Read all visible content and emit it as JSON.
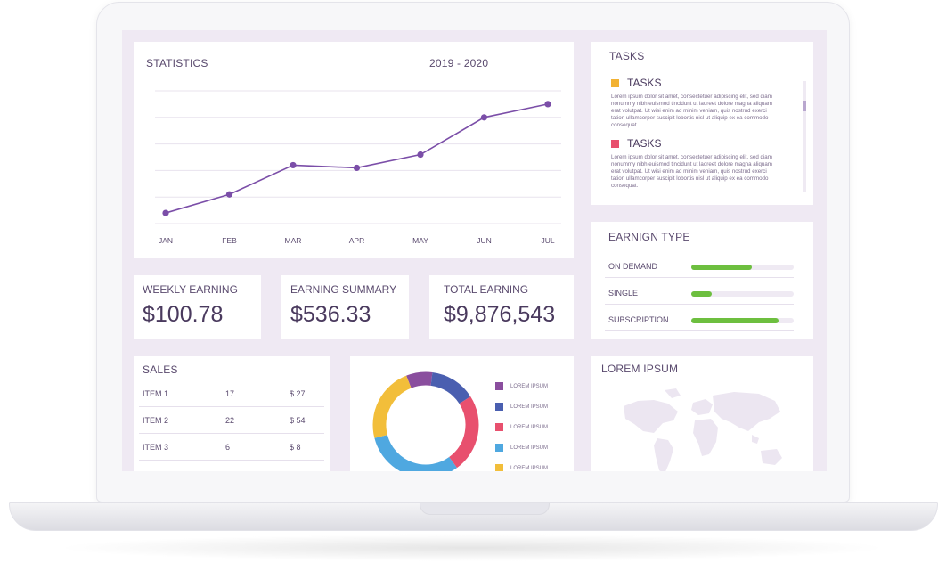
{
  "statistics": {
    "title": "STATISTICS",
    "period": "2019 - 2020",
    "chart_data": {
      "type": "line",
      "title": "STATISTICS",
      "subtitle": "2019 - 2020",
      "categories": [
        "JAN",
        "FEB",
        "MAR",
        "APR",
        "MAY",
        "JUN",
        "JUL"
      ],
      "values": [
        4,
        11,
        22,
        21,
        26,
        40,
        45
      ],
      "ylim": [
        0,
        50
      ],
      "grid": true,
      "line_color": "#7b4ea8"
    }
  },
  "tasks": {
    "title": "TASKS",
    "items": [
      {
        "label": "TASKS",
        "color": "#f2b233",
        "body": "Lorem ipsum dolor sit amet, consectetuer adipiscing elit, sed diam nonummy nibh euismod tincidunt ut laoreet dolore magna aliquam erat volutpat. Ut wisi enim ad minim veniam, quis nostrud exerci tation ullamcorper suscipit lobortis nisl ut aliquip ex ea commodo consequat."
      },
      {
        "label": "TASKS",
        "color": "#e8506e",
        "body": "Lorem ipsum dolor sit amet, consectetuer adipiscing elit, sed diam nonummy nibh euismod tincidunt ut laoreet dolore magna aliquam erat volutpat. Ut wisi enim ad minim veniam, quis nostrud exerci tation ullamcorper suscipit lobortis nisl ut aliquip ex ea commodo consequat."
      }
    ]
  },
  "earnings": [
    {
      "label": "WEEKLY EARNING",
      "value": "$100.78"
    },
    {
      "label": "EARNING SUMMARY",
      "value": "$536.33"
    },
    {
      "label": "TOTAL EARNING",
      "value": "$9,876,543"
    }
  ],
  "earning_type": {
    "title": "EARNIGN TYPE",
    "accent": "#6dbf3f",
    "items": [
      {
        "label": "ON DEMAND",
        "level": 0.59
      },
      {
        "label": "SINGLE",
        "level": 0.2
      },
      {
        "label": "SUBSCRIPTION",
        "level": 0.85
      }
    ]
  },
  "sales": {
    "title": "SALES",
    "rows": [
      {
        "item": "ITEM 1",
        "qty": "17",
        "price": "$ 27"
      },
      {
        "item": "ITEM 2",
        "qty": "22",
        "price": "$ 54"
      },
      {
        "item": "ITEM 3",
        "qty": "6",
        "price": "$ 8"
      }
    ]
  },
  "donut": {
    "chart_data": {
      "type": "pie",
      "donut": true,
      "categories": [
        "LOREM IPSUM",
        "LOREM IPSUM",
        "LOREM IPSUM",
        "LOREM IPSUM",
        "LOREM IPSUM"
      ],
      "values": [
        8,
        14,
        24,
        31,
        23
      ],
      "colors": [
        "#8a4e9e",
        "#4a5fb0",
        "#e8506e",
        "#4fa8e0",
        "#f2be3a"
      ]
    }
  },
  "map": {
    "title": "LOREM IPSUM",
    "icon": "world-map-icon"
  }
}
